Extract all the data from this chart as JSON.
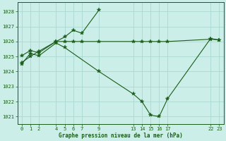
{
  "title": "Graphe pression niveau de la mer (hPa)",
  "bg_color": "#cceee8",
  "grid_color": "#aad8d2",
  "line_color": "#1a5c1a",
  "ylim": [
    1020.5,
    1028.6
  ],
  "xlim": [
    -0.5,
    23.5
  ],
  "yticks": [
    1021,
    1022,
    1023,
    1024,
    1025,
    1026,
    1027,
    1028
  ],
  "xticks": [
    0,
    1,
    2,
    4,
    5,
    6,
    7,
    9,
    13,
    14,
    15,
    16,
    17,
    22,
    23
  ],
  "line1_x": [
    0,
    1,
    2,
    4,
    5,
    6,
    7,
    9
  ],
  "line1_y": [
    1024.6,
    1025.0,
    1025.35,
    1026.0,
    1026.3,
    1026.75,
    1026.55,
    1028.1
  ],
  "line2_x": [
    0,
    1,
    2,
    4,
    5,
    6,
    7,
    9,
    13,
    14,
    15,
    16,
    17,
    22,
    23
  ],
  "line2_y": [
    1025.05,
    1025.4,
    1025.25,
    1026.0,
    1026.0,
    1026.0,
    1026.0,
    1026.0,
    1026.0,
    1026.0,
    1026.0,
    1026.0,
    1026.0,
    1026.15,
    1026.1
  ],
  "line3_x": [
    0,
    1,
    2,
    4,
    5,
    9,
    13,
    14,
    15,
    16,
    17,
    22,
    23
  ],
  "line3_y": [
    1024.5,
    1025.2,
    1025.05,
    1025.9,
    1025.6,
    1024.0,
    1022.5,
    1022.0,
    1021.1,
    1021.0,
    1022.2,
    1026.2,
    1026.1
  ],
  "markersize": 3,
  "linewidth": 0.8,
  "title_fontsize": 5.5,
  "tick_fontsize": 5.0
}
